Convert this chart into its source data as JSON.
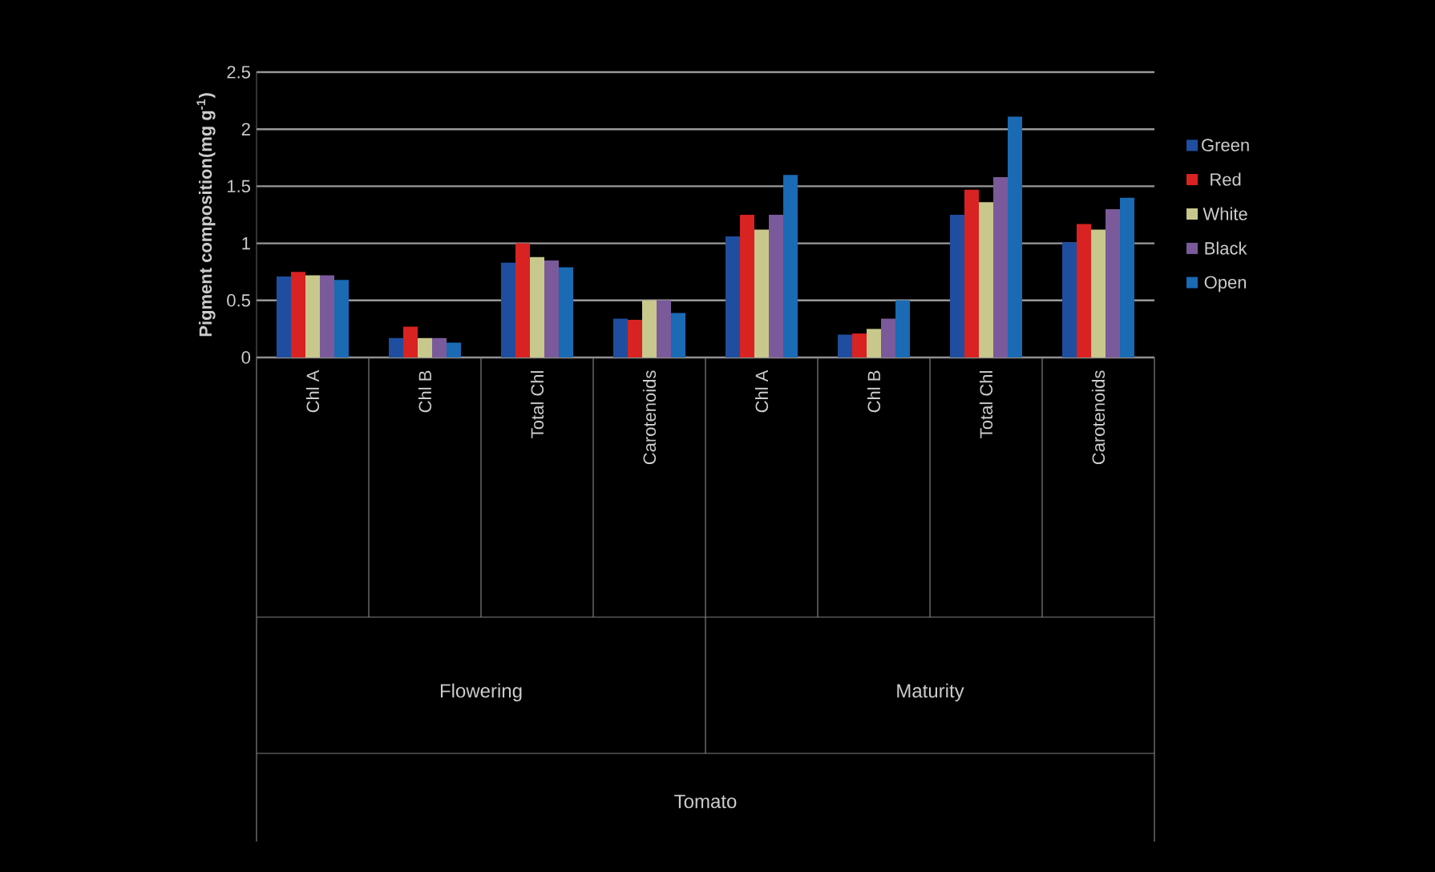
{
  "chart_data": {
    "type": "bar",
    "ylabel": "Pigment composition(mg g$^{-1}$)",
    "categories": [
      "Chl A",
      "Chl B",
      "Total Chl",
      "Carotenoids",
      "Chl A",
      "Chl B",
      "Total Chl",
      "Carotenoids"
    ],
    "annotations": [
      "Flowering",
      "Maturity",
      "Tomato"
    ],
    "series": [
      {
        "name": "Green",
        "color": "#1f4ea0",
        "values": [
          0.71,
          0.17,
          0.83,
          0.34,
          1.06,
          0.2,
          1.25,
          1.01
        ]
      },
      {
        "name": "Red",
        "color": "#d92222",
        "values": [
          0.75,
          0.27,
          1.0,
          0.33,
          1.25,
          0.21,
          1.47,
          1.17
        ]
      },
      {
        "name": "White",
        "color": "#c8c88c",
        "values": [
          0.72,
          0.17,
          0.88,
          0.5,
          1.12,
          0.25,
          1.36,
          1.12
        ]
      },
      {
        "name": "Black",
        "color": "#7a5a9a",
        "values": [
          0.72,
          0.17,
          0.85,
          0.5,
          1.25,
          0.34,
          1.58,
          1.3
        ]
      },
      {
        "name": "Open",
        "color": "#1a6ab4",
        "values": [
          0.68,
          0.13,
          0.79,
          0.39,
          1.6,
          0.5,
          2.11,
          1.4
        ]
      }
    ],
    "ylim": [
      0,
      2.5
    ],
    "yticks": [
      0,
      0.5,
      1,
      1.5,
      2,
      2.5
    ],
    "grid": "y",
    "legend": "right"
  }
}
